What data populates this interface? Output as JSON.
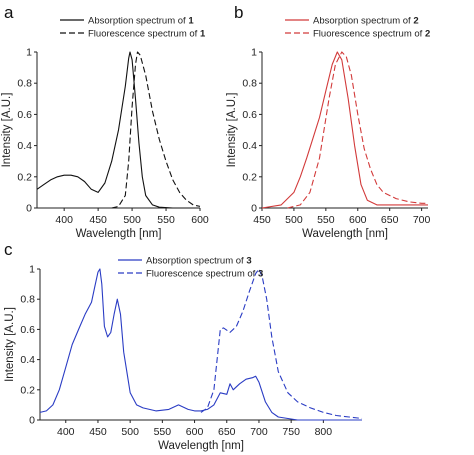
{
  "chart_data": [
    {
      "panel": "a",
      "type": "line",
      "xlabel": "Wavelength [nm]",
      "ylabel": "Intensity [A.U.]",
      "xlim": [
        360,
        600
      ],
      "ylim": [
        0,
        1
      ],
      "xticks": [
        400,
        450,
        500,
        550,
        600
      ],
      "yticks": [
        0,
        0.2,
        0.4,
        0.6,
        0.8,
        1
      ],
      "grid": false,
      "legend_position": "top",
      "series": [
        {
          "name": "Absorption spectrum of 1",
          "color": "#111111",
          "dash": "solid",
          "points": [
            [
              360,
              0.12
            ],
            [
              370,
              0.15
            ],
            [
              380,
              0.18
            ],
            [
              390,
              0.2
            ],
            [
              400,
              0.21
            ],
            [
              410,
              0.21
            ],
            [
              420,
              0.2
            ],
            [
              430,
              0.17
            ],
            [
              440,
              0.12
            ],
            [
              450,
              0.1
            ],
            [
              460,
              0.16
            ],
            [
              470,
              0.3
            ],
            [
              480,
              0.5
            ],
            [
              490,
              0.78
            ],
            [
              495,
              0.96
            ],
            [
              497,
              1.0
            ],
            [
              500,
              0.95
            ],
            [
              505,
              0.7
            ],
            [
              510,
              0.42
            ],
            [
              515,
              0.2
            ],
            [
              520,
              0.08
            ],
            [
              530,
              0.02
            ],
            [
              540,
              0.005
            ],
            [
              560,
              0.0
            ],
            [
              600,
              0.0
            ]
          ]
        },
        {
          "name": "Fluorescence spectrum of 1",
          "color": "#111111",
          "dash": "dashed",
          "points": [
            [
              470,
              0.0
            ],
            [
              480,
              0.01
            ],
            [
              490,
              0.08
            ],
            [
              495,
              0.3
            ],
            [
              500,
              0.65
            ],
            [
              505,
              0.92
            ],
            [
              508,
              1.0
            ],
            [
              512,
              0.98
            ],
            [
              520,
              0.85
            ],
            [
              530,
              0.62
            ],
            [
              540,
              0.44
            ],
            [
              550,
              0.3
            ],
            [
              560,
              0.18
            ],
            [
              570,
              0.1
            ],
            [
              580,
              0.05
            ],
            [
              590,
              0.02
            ],
            [
              600,
              0.01
            ]
          ]
        }
      ]
    },
    {
      "panel": "b",
      "type": "line",
      "xlabel": "Wavelength [nm]",
      "ylabel": "Intensity [A.U.]",
      "xlim": [
        450,
        710
      ],
      "ylim": [
        0,
        1
      ],
      "xticks": [
        450,
        500,
        550,
        600,
        650,
        700
      ],
      "yticks": [
        0,
        0.2,
        0.4,
        0.6,
        0.8,
        1
      ],
      "grid": false,
      "legend_position": "top",
      "series": [
        {
          "name": "Absorption spectrum of 2",
          "color": "#d23a3a",
          "dash": "solid",
          "points": [
            [
              450,
              0.0
            ],
            [
              480,
              0.02
            ],
            [
              500,
              0.1
            ],
            [
              510,
              0.2
            ],
            [
              520,
              0.32
            ],
            [
              530,
              0.45
            ],
            [
              540,
              0.58
            ],
            [
              550,
              0.75
            ],
            [
              560,
              0.92
            ],
            [
              568,
              1.0
            ],
            [
              575,
              0.95
            ],
            [
              585,
              0.7
            ],
            [
              595,
              0.4
            ],
            [
              605,
              0.15
            ],
            [
              615,
              0.05
            ],
            [
              630,
              0.02
            ],
            [
              660,
              0.02
            ],
            [
              710,
              0.02
            ]
          ]
        },
        {
          "name": "Fluorescence spectrum of 2",
          "color": "#d23a3a",
          "dash": "dashed",
          "points": [
            [
              490,
              0.0
            ],
            [
              510,
              0.02
            ],
            [
              525,
              0.1
            ],
            [
              540,
              0.32
            ],
            [
              555,
              0.7
            ],
            [
              565,
              0.92
            ],
            [
              575,
              1.0
            ],
            [
              582,
              0.97
            ],
            [
              590,
              0.85
            ],
            [
              600,
              0.6
            ],
            [
              610,
              0.38
            ],
            [
              620,
              0.25
            ],
            [
              630,
              0.15
            ],
            [
              640,
              0.1
            ],
            [
              660,
              0.06
            ],
            [
              680,
              0.04
            ],
            [
              700,
              0.03
            ],
            [
              710,
              0.03
            ]
          ]
        }
      ]
    },
    {
      "panel": "c",
      "type": "line",
      "xlabel": "Wavelength [nm]",
      "ylabel": "Intensity [A.U.]",
      "xlim": [
        360,
        860
      ],
      "ylim": [
        0,
        1
      ],
      "xticks": [
        400,
        450,
        500,
        550,
        600,
        650,
        700,
        750,
        800
      ],
      "yticks": [
        0,
        0.2,
        0.4,
        0.6,
        0.8,
        1
      ],
      "grid": false,
      "legend_position": "top",
      "series": [
        {
          "name": "Absorption spectrum of 3",
          "color": "#2a3cc4",
          "dash": "solid",
          "points": [
            [
              360,
              0.05
            ],
            [
              370,
              0.06
            ],
            [
              380,
              0.1
            ],
            [
              390,
              0.2
            ],
            [
              400,
              0.35
            ],
            [
              410,
              0.5
            ],
            [
              420,
              0.6
            ],
            [
              430,
              0.7
            ],
            [
              440,
              0.78
            ],
            [
              445,
              0.88
            ],
            [
              450,
              0.98
            ],
            [
              453,
              1.0
            ],
            [
              456,
              0.9
            ],
            [
              460,
              0.62
            ],
            [
              465,
              0.55
            ],
            [
              470,
              0.58
            ],
            [
              475,
              0.7
            ],
            [
              480,
              0.8
            ],
            [
              485,
              0.7
            ],
            [
              490,
              0.45
            ],
            [
              500,
              0.18
            ],
            [
              510,
              0.1
            ],
            [
              520,
              0.08
            ],
            [
              540,
              0.06
            ],
            [
              560,
              0.07
            ],
            [
              575,
              0.1
            ],
            [
              590,
              0.07
            ],
            [
              600,
              0.06
            ],
            [
              610,
              0.06
            ],
            [
              620,
              0.07
            ],
            [
              630,
              0.1
            ],
            [
              640,
              0.18
            ],
            [
              650,
              0.17
            ],
            [
              655,
              0.24
            ],
            [
              660,
              0.2
            ],
            [
              670,
              0.24
            ],
            [
              680,
              0.27
            ],
            [
              690,
              0.28
            ],
            [
              695,
              0.29
            ],
            [
              700,
              0.25
            ],
            [
              710,
              0.12
            ],
            [
              720,
              0.05
            ],
            [
              730,
              0.02
            ],
            [
              760,
              0.0
            ],
            [
              800,
              0.0
            ],
            [
              860,
              0.0
            ]
          ]
        },
        {
          "name": "Fluorescence spectrum of 3",
          "color": "#2a3cc4",
          "dash": "dashed",
          "points": [
            [
              610,
              0.05
            ],
            [
              620,
              0.08
            ],
            [
              630,
              0.2
            ],
            [
              635,
              0.4
            ],
            [
              640,
              0.6
            ],
            [
              645,
              0.61
            ],
            [
              655,
              0.58
            ],
            [
              665,
              0.62
            ],
            [
              675,
              0.72
            ],
            [
              685,
              0.85
            ],
            [
              695,
              0.97
            ],
            [
              700,
              1.0
            ],
            [
              705,
              0.95
            ],
            [
              712,
              0.8
            ],
            [
              720,
              0.55
            ],
            [
              730,
              0.32
            ],
            [
              745,
              0.18
            ],
            [
              760,
              0.12
            ],
            [
              780,
              0.08
            ],
            [
              800,
              0.05
            ],
            [
              820,
              0.03
            ],
            [
              840,
              0.02
            ],
            [
              860,
              0.01
            ]
          ]
        }
      ]
    }
  ]
}
